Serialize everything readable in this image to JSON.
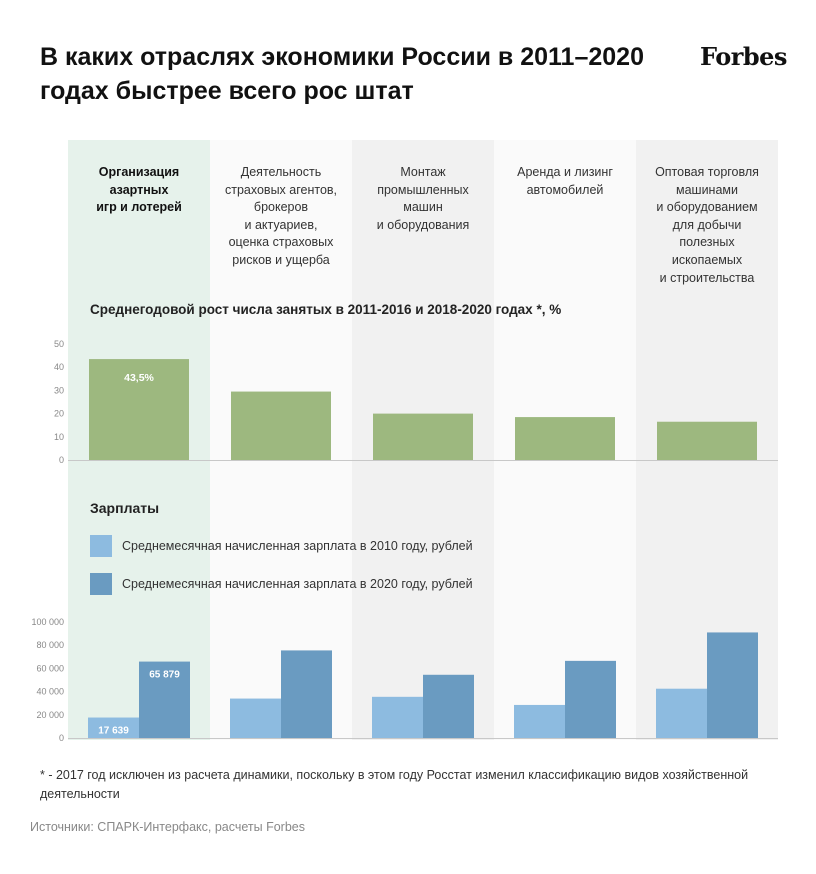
{
  "header": {
    "title": "В каких отраслях экономики России в 2011–2020 годах быстрее всего рос штат",
    "logo": "Forbes"
  },
  "colors": {
    "highlight_column": "#e6f2eb",
    "column_alt": "#f1f1f1",
    "column_light": "#fafafa",
    "growth_bar": "#9db87f",
    "salary_2010": "#8dbbe0",
    "salary_2020": "#6a9bc1"
  },
  "categories": [
    "Организация азартных игр и лотерей",
    "Деятельность страховых агентов, брокеров и актуариев, оценка страховых рисков и ущерба",
    "Монтаж промышленных машин и оборудования",
    "Аренда и лизинг автомобилей",
    "Оптовая торговля машинами и оборудованием для добычи полезных ископаемых и строительства"
  ],
  "category_lines": [
    [
      "Организация",
      "азартных",
      "игр и лотерей"
    ],
    [
      "Деятельность",
      "страховых агентов,",
      "брокеров",
      "и актуариев,",
      "оценка страховых",
      "рисков и ущерба"
    ],
    [
      "Монтаж",
      "промышленных",
      "машин",
      "и оборудования"
    ],
    [
      "Аренда и лизинг",
      "автомобилей"
    ],
    [
      "Оптовая торговля",
      "машинами",
      "и оборудованием",
      "для добычи",
      "полезных",
      "ископаемых",
      "и строительства"
    ]
  ],
  "growth_section": {
    "title": "Среднегодовой рост числа занятых в 2011-2016 и 2018-2020 годах *, %"
  },
  "salary_section": {
    "title": "Зарплаты",
    "legend_2010": "Среднемесячная начисленная зарплата в 2010 году, рублей",
    "legend_2020": "Среднемесячная начисленная зарплата в 2020 году, рублей"
  },
  "chart_data": [
    {
      "type": "bar",
      "title": "Среднегодовой рост числа занятых в 2011-2016 и 2018-2020 годах *, %",
      "categories": [
        "Организация азартных игр и лотерей",
        "Деятельность страховых агентов, брокеров и актуариев, оценка страховых рисков и ущерба",
        "Монтаж промышленных машин и оборудования",
        "Аренда и лизинг автомобилей",
        "Оптовая торговля машинами и оборудованием для добычи полезных ископаемых и строительства"
      ],
      "values": [
        43.5,
        29.5,
        20,
        18.5,
        16.5
      ],
      "data_labels": [
        "43,5%",
        "",
        "",
        "",
        ""
      ],
      "ylim": [
        0,
        50
      ],
      "yticks": [
        0,
        10,
        20,
        30,
        40,
        50
      ],
      "ytick_labels": [
        "0",
        "10",
        "20",
        "30",
        "40",
        "50"
      ],
      "grid": false
    },
    {
      "type": "bar",
      "title": "Зарплаты",
      "categories": [
        "Организация азартных игр и лотерей",
        "Деятельность страховых агентов, брокеров и актуариев, оценка страховых рисков и ущерба",
        "Монтаж промышленных машин и оборудования",
        "Аренда и лизинг автомобилей",
        "Оптовая торговля машинами и оборудованием для добычи полезных ископаемых и строительства"
      ],
      "series": [
        {
          "name": "Среднемесячная начисленная зарплата в 2010 году, рублей",
          "values": [
            17639,
            34000,
            35500,
            28500,
            42500
          ],
          "data_labels": [
            "17 639",
            "",
            "",
            "",
            ""
          ]
        },
        {
          "name": "Среднемесячная начисленная зарплата в 2020 году, рублей",
          "values": [
            65879,
            75500,
            54500,
            66500,
            91000
          ],
          "data_labels": [
            "65 879",
            "",
            "",
            "",
            ""
          ]
        }
      ],
      "ylim": [
        0,
        100000
      ],
      "yticks": [
        0,
        20000,
        40000,
        60000,
        80000,
        100000
      ],
      "ytick_labels": [
        "0",
        "20 000",
        "40 000",
        "60 000",
        "80 000",
        "100 000"
      ],
      "legend": "top-left",
      "grid": false
    }
  ],
  "footer": {
    "note": "* - 2017 год исключен из расчета динамики, поскольку в этом году Росстат изменил классификацию видов хозяйственной деятельности",
    "source": "Источники: СПАРК-Интерфакс, расчеты Forbes"
  }
}
